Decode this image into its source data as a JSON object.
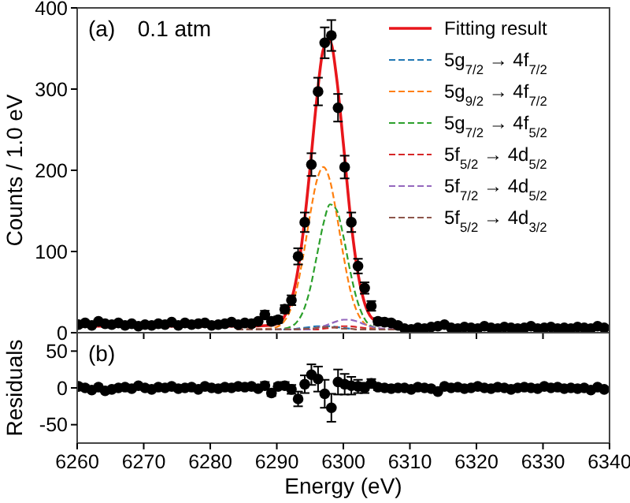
{
  "chart_data": [
    {
      "type": "line",
      "ylabel": "Counts / 1.0 eV",
      "annotations": [
        "(a)",
        "0.1 atm"
      ],
      "xlim": [
        6260,
        6340
      ],
      "xticks": [
        {
          "value": 6260,
          "label": null
        },
        {
          "value": 6270,
          "label": null
        },
        {
          "value": 6280,
          "label": null
        },
        {
          "value": 6290,
          "label": null
        },
        {
          "value": 6300,
          "label": null
        },
        {
          "value": 6310,
          "label": null
        },
        {
          "value": 6320,
          "label": null
        },
        {
          "value": 6330,
          "label": null
        },
        {
          "value": 6340,
          "label": null
        }
      ],
      "ylim": [
        0,
        400
      ],
      "yticks": [
        0,
        100,
        200,
        300,
        400
      ],
      "tick_labels": "y",
      "legend": "top right",
      "grid": false,
      "series": [
        {
          "type": "scatter",
          "color": "#000000",
          "marker": "circle",
          "x": [
            6260.2,
            6261.2,
            6262.2,
            6263.2,
            6264.2,
            6265.2,
            6266.2,
            6267.2,
            6268.2,
            6269.2,
            6270.2,
            6271.2,
            6272.2,
            6273.2,
            6274.2,
            6275.2,
            6276.2,
            6277.2,
            6278.2,
            6279.2,
            6280.2,
            6281.2,
            6282.2,
            6283.2,
            6284.2,
            6285.2,
            6286.2,
            6287.2,
            6288.2,
            6289.2,
            6290.2,
            6291.2,
            6292.2,
            6293.2,
            6294.2,
            6295.2,
            6296.2,
            6297.2,
            6298.2,
            6299.2,
            6300.2,
            6301.2,
            6302.2,
            6303.2,
            6304.2,
            6305.2,
            6306.2,
            6307.2,
            6308.2,
            6309.2,
            6310.2,
            6311.2,
            6312.2,
            6313.2,
            6314.2,
            6315.2,
            6316.2,
            6317.2,
            6318.2,
            6319.2,
            6320.2,
            6321.2,
            6322.2,
            6323.2,
            6324.2,
            6325.2,
            6326.2,
            6327.2,
            6328.2,
            6329.2,
            6330.2,
            6331.2,
            6332.2,
            6333.2,
            6334.2,
            6335.2,
            6336.2,
            6337.2,
            6338.2,
            6339.2
          ],
          "values": [
            10,
            12,
            9,
            14,
            11,
            10,
            12,
            9,
            11,
            8,
            10,
            9,
            11,
            10,
            13,
            9,
            12,
            10,
            11,
            12,
            9,
            10,
            11,
            13,
            10,
            12,
            11,
            14,
            22,
            14,
            16,
            29,
            40,
            94,
            136,
            207,
            297,
            357,
            366,
            277,
            204,
            136,
            82,
            55,
            33,
            14,
            13,
            12,
            9,
            5,
            4,
            6,
            5,
            7,
            8,
            10,
            6,
            5,
            7,
            6,
            5,
            8,
            6,
            5,
            7,
            6,
            5,
            6,
            8,
            5,
            6,
            7,
            5,
            6,
            5,
            7,
            6,
            5,
            8,
            6
          ],
          "errors": [
            null,
            null,
            null,
            null,
            null,
            null,
            null,
            null,
            null,
            null,
            null,
            null,
            null,
            null,
            null,
            null,
            null,
            null,
            null,
            null,
            null,
            null,
            null,
            null,
            null,
            null,
            null,
            null,
            5,
            4,
            4,
            5,
            6,
            10,
            12,
            14,
            17,
            19,
            19,
            17,
            14,
            12,
            9,
            7,
            6,
            4,
            4,
            3,
            3,
            null,
            null,
            null,
            null,
            null,
            null,
            null,
            null,
            null,
            null,
            null,
            null,
            null,
            null,
            null,
            null,
            null,
            null,
            null,
            null,
            null,
            null,
            null,
            null,
            null,
            null,
            null,
            null,
            null,
            null,
            null
          ]
        },
        {
          "type": "line",
          "name": "Fitting result",
          "color": "#e8161b",
          "line_style": "solid",
          "x": [
            6260,
            6285,
            6289,
            6290,
            6291,
            6292,
            6293,
            6294,
            6295,
            6296,
            6297,
            6298,
            6299,
            6300,
            6301,
            6302,
            6303,
            6304,
            6305,
            6306
          ],
          "values": [
            8,
            8,
            9,
            11,
            18,
            35,
            69,
            126,
            203,
            287,
            349,
            359,
            313,
            233,
            148,
            83,
            42,
            21,
            14,
            9
          ]
        },
        {
          "type": "line",
          "name": "5g$_{7/2}$ → 4f$_{7/2}$",
          "color": "#1f77b4",
          "line_style": "dashed",
          "x": [
            6291,
            6292,
            6293,
            6294,
            6295,
            6296,
            6297,
            6298,
            6299,
            6300,
            6301
          ],
          "values": [
            4,
            4,
            5,
            6,
            7,
            8,
            8,
            8,
            7,
            6,
            5
          ]
        },
        {
          "type": "line",
          "name": "5g$_{9/2}$ → 4f$_{7/2}$",
          "color": "#ff7f0e",
          "line_style": "dashed",
          "x": [
            6284,
            6289,
            6290,
            6291,
            6292,
            6293,
            6294,
            6295,
            6296,
            6297,
            6298,
            6299,
            6300,
            6301,
            6302,
            6303,
            6304,
            6305,
            6306,
            6312
          ],
          "values": [
            4,
            5,
            7,
            13,
            27,
            54,
            96,
            145,
            187,
            204,
            187,
            145,
            96,
            54,
            27,
            13,
            7,
            5,
            4,
            4
          ]
        },
        {
          "type": "line",
          "name": "5g$_{7/2}$ → 4f$_{5/2}$",
          "color": "#2ca02c",
          "line_style": "dashed",
          "x": [
            6284,
            6289,
            6290,
            6291,
            6292,
            6293,
            6294,
            6295,
            6296,
            6297,
            6298,
            6299,
            6300,
            6301,
            6302,
            6303,
            6304,
            6305,
            6306,
            6312
          ],
          "values": [
            4,
            4,
            4,
            5,
            7,
            13,
            27,
            54,
            94,
            134,
            158,
            151,
            119,
            77,
            42,
            20,
            9,
            6,
            4,
            4
          ]
        },
        {
          "type": "line",
          "name": "5f$_{5/2}$ → 4d$_{5/2}$",
          "color": "#d62728",
          "line_style": "dashed",
          "x": [
            6284,
            6289,
            6290,
            6291,
            6292,
            6293,
            6294,
            6295,
            6296,
            6297,
            6298,
            6299,
            6300,
            6301,
            6302,
            6303,
            6304,
            6305,
            6306,
            6312
          ],
          "values": [
            4,
            4,
            4,
            4,
            4,
            4,
            4,
            4,
            4,
            5,
            6,
            7,
            8,
            8,
            7,
            6,
            5,
            4,
            4,
            4
          ]
        },
        {
          "type": "line",
          "name": "5f$_{7/2}$ → 4d$_{5/2}$",
          "color": "#9467bd",
          "line_style": "dashed",
          "x": [
            6284,
            6289,
            6290,
            6291,
            6292,
            6293,
            6294,
            6295,
            6296,
            6297,
            6298,
            6299,
            6300,
            6301,
            6302,
            6303,
            6304,
            6305,
            6306,
            6312
          ],
          "values": [
            4,
            4,
            4,
            4,
            4,
            4,
            4,
            4,
            6,
            8,
            11,
            14,
            16,
            16,
            14,
            11,
            8,
            6,
            5,
            4
          ]
        },
        {
          "type": "line",
          "name": "5f$_{5/2}$ → 4d$_{3/2}$",
          "color": "#8c564b",
          "line_style": "dashed",
          "x": [
            6284,
            6289,
            6290,
            6291,
            6292,
            6293,
            6294,
            6295,
            6296,
            6297,
            6298,
            6299,
            6300,
            6301,
            6302,
            6303,
            6304,
            6305,
            6306,
            6312
          ],
          "values": [
            4,
            4,
            4,
            4,
            4,
            4,
            5,
            5,
            6,
            7,
            7,
            6,
            5,
            5,
            4,
            4,
            4,
            4,
            4,
            4
          ]
        }
      ]
    },
    {
      "type": "scatter",
      "xlabel": "Energy (eV)",
      "ylabel": "Residuals",
      "annotations": [
        "(b)"
      ],
      "xlim": [
        6260,
        6340
      ],
      "xticks": [
        6260,
        6270,
        6280,
        6290,
        6300,
        6310,
        6320,
        6330,
        6340
      ],
      "ylim": [
        -75,
        75
      ],
      "yticks": [
        -50,
        0,
        50
      ],
      "grid": false,
      "marker": "circle",
      "series": [
        {
          "color": "#000000",
          "x": [
            6260.2,
            6261.2,
            6262.2,
            6263.2,
            6264.2,
            6265.2,
            6266.2,
            6267.2,
            6268.2,
            6269.2,
            6270.2,
            6271.2,
            6272.2,
            6273.2,
            6274.2,
            6275.2,
            6276.2,
            6277.2,
            6278.2,
            6279.2,
            6280.2,
            6281.2,
            6282.2,
            6283.2,
            6284.2,
            6285.2,
            6286.2,
            6287.2,
            6288.2,
            6289.2,
            6290.2,
            6291.2,
            6292.2,
            6293.2,
            6294.2,
            6295.2,
            6296.2,
            6297.2,
            6298.2,
            6299.2,
            6300.2,
            6301.2,
            6302.2,
            6303.2,
            6304.2,
            6305.2,
            6306.2,
            6307.2,
            6308.2,
            6309.2,
            6310.2,
            6311.2,
            6312.2,
            6313.2,
            6314.2,
            6315.2,
            6316.2,
            6317.2,
            6318.2,
            6319.2,
            6320.2,
            6321.2,
            6322.2,
            6323.2,
            6324.2,
            6325.2,
            6326.2,
            6327.2,
            6328.2,
            6329.2,
            6330.2,
            6331.2,
            6332.2,
            6333.2,
            6334.2,
            6335.2,
            6336.2,
            6337.2,
            6338.2,
            6339.2
          ],
          "values": [
            2,
            0,
            -3,
            1,
            -4,
            -2,
            0,
            1,
            -1,
            3,
            0,
            -2,
            1,
            0,
            2,
            -1,
            0,
            1,
            -2,
            2,
            0,
            -1,
            1,
            0,
            2,
            1,
            2,
            -1,
            3,
            -7,
            2,
            3,
            -2,
            -15,
            5,
            18,
            12,
            -8,
            -27,
            8,
            5,
            3,
            2,
            0,
            6,
            1,
            0,
            -1,
            0,
            0,
            -2,
            1,
            0,
            -1,
            -5,
            2,
            0,
            1,
            -1,
            0,
            2,
            0,
            -1,
            1,
            0,
            -2,
            0,
            1,
            0,
            -1,
            2,
            0,
            1,
            -1,
            0,
            -1,
            0,
            -3,
            1,
            -2
          ],
          "errors": [
            null,
            null,
            null,
            null,
            null,
            null,
            null,
            null,
            null,
            null,
            null,
            null,
            null,
            null,
            null,
            null,
            null,
            null,
            null,
            null,
            null,
            null,
            null,
            null,
            null,
            null,
            null,
            null,
            5,
            4,
            4,
            5,
            6,
            10,
            12,
            14,
            17,
            19,
            19,
            17,
            14,
            12,
            9,
            7,
            6,
            4,
            4,
            3,
            3,
            null,
            null,
            null,
            null,
            null,
            null,
            null,
            null,
            null,
            null,
            null,
            null,
            null,
            null,
            null,
            null,
            null,
            null,
            null,
            null,
            null,
            null,
            null,
            null,
            null,
            null,
            null,
            null,
            null,
            null,
            null
          ]
        }
      ]
    }
  ]
}
